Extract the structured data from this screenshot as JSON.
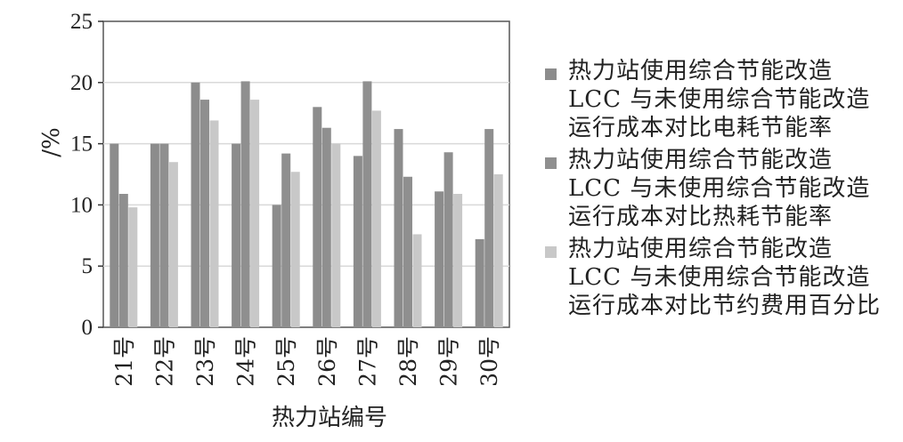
{
  "chart_data": {
    "type": "bar",
    "categories": [
      "21号",
      "22号",
      "23号",
      "24号",
      "25号",
      "26号",
      "27号",
      "28号",
      "29号",
      "30号"
    ],
    "series": [
      {
        "name": "热力站使用综合节能改造 LCC 与未使用综合节能改造运行成本对比电耗节能率",
        "color": "#8c8c8c",
        "values": [
          15.0,
          15.0,
          20.0,
          15.0,
          10.0,
          18.0,
          14.0,
          16.2,
          11.1,
          7.2
        ]
      },
      {
        "name": "热力站使用综合节能改造 LCC 与未使用综合节能改造运行成本对比热耗节能率",
        "color": "#8f8f8f",
        "values": [
          10.9,
          15.0,
          18.6,
          20.1,
          14.2,
          16.3,
          20.1,
          12.3,
          14.3,
          16.2
        ]
      },
      {
        "name": "热力站使用综合节能改造 LCC 与未使用综合节能改造运行成本对比节约费用百分比",
        "color": "#c8c8c8",
        "values": [
          9.8,
          13.5,
          16.9,
          18.6,
          12.7,
          15.0,
          17.7,
          7.6,
          10.9,
          12.5
        ]
      }
    ],
    "xlabel": "热力站编号",
    "ylabel": "/%",
    "ylim": [
      0,
      25
    ],
    "yticks": [
      0,
      5,
      10,
      15,
      20,
      25
    ],
    "grid": true,
    "legend_position": "right"
  }
}
